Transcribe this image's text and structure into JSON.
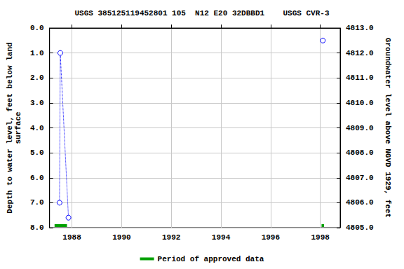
{
  "chart_data": {
    "type": "line",
    "title": "USGS 385125119452801 105  N12 E20 32DBBD1    USGS CVR-3",
    "ylabel": "Depth to water level, feet below land\nsurface",
    "y2label": "Groundwater level above NGVD 1929, feet",
    "x": [
      1987.5,
      1987.53,
      1987.86,
      null,
      1998.1
    ],
    "series": [
      {
        "values": [
          7.0,
          1.0,
          7.6,
          null,
          0.5
        ],
        "color": "#0000ff",
        "marker": "circle-open",
        "line_style": "dotted"
      }
    ],
    "approved": {
      "name": "Period of approved data",
      "color": "#00a000",
      "periods": [
        [
          1987.3,
          1987.8
        ],
        [
          1998.05,
          1998.15
        ]
      ]
    },
    "xlim": [
      1987.1,
      1998.8
    ],
    "xticks": [
      1988,
      1990,
      1992,
      1994,
      1996,
      1998
    ],
    "ylim": [
      0,
      8
    ],
    "yticks": [
      {
        "value": 0,
        "label": "0.0"
      },
      {
        "value": 1,
        "label": "1.0"
      },
      {
        "value": 2,
        "label": "2.0"
      },
      {
        "value": 3,
        "label": "3.0"
      },
      {
        "value": 4,
        "label": "4.0"
      },
      {
        "value": 5,
        "label": "5.0"
      },
      {
        "value": 6,
        "label": "6.0"
      },
      {
        "value": 7,
        "label": "7.0"
      },
      {
        "value": 8,
        "label": "8.0"
      }
    ],
    "y2lim": [
      4805,
      4813
    ],
    "y2ticks": [
      {
        "value": 4805,
        "label": "4805.0"
      },
      {
        "value": 4806,
        "label": "4806.0"
      },
      {
        "value": 4807,
        "label": "4807.0"
      },
      {
        "value": 4808,
        "label": "4808.0"
      },
      {
        "value": 4809,
        "label": "4809.0"
      },
      {
        "value": 4810,
        "label": "4810.0"
      },
      {
        "value": 4811,
        "label": "4811.0"
      },
      {
        "value": 4812,
        "label": "4812.0"
      },
      {
        "value": 4813,
        "label": "4813.0"
      }
    ],
    "grid": true
  }
}
